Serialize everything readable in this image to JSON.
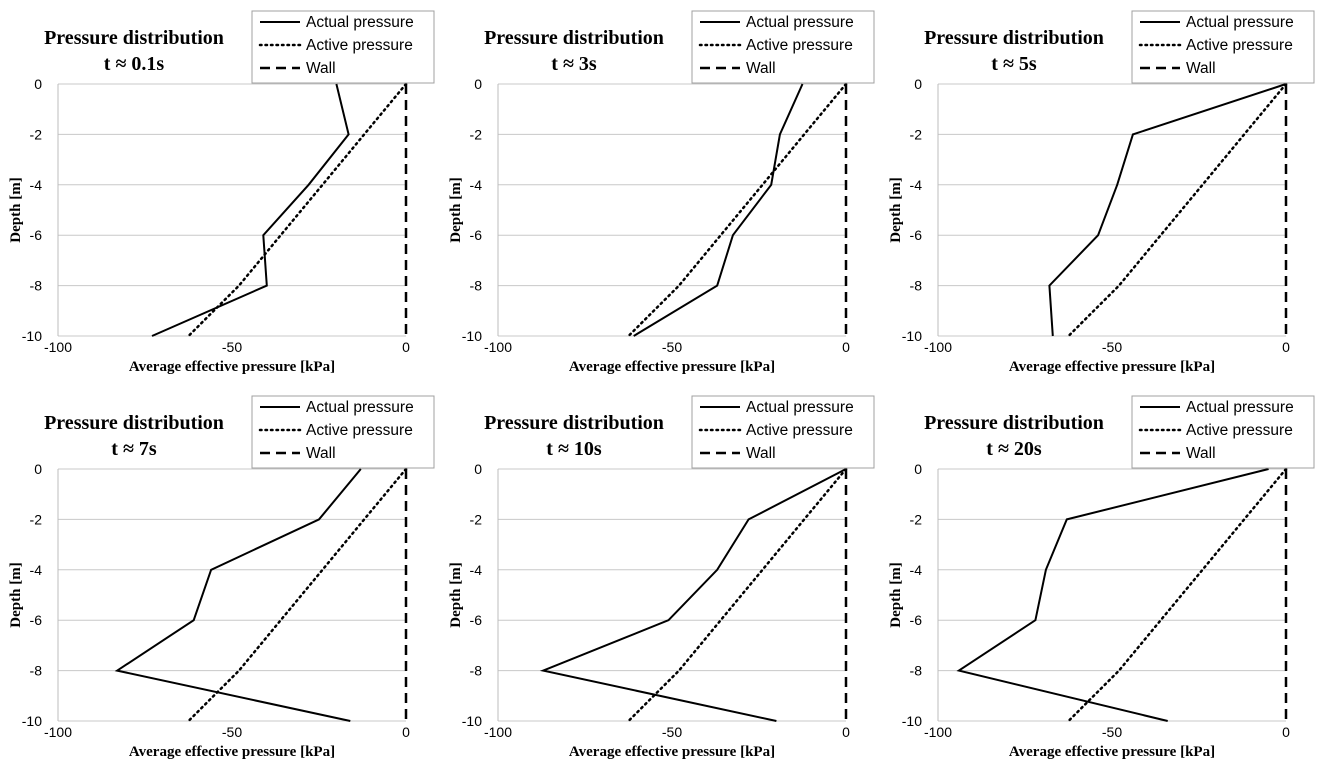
{
  "chart_data": [
    {
      "type": "line",
      "title": "Pressure distribution",
      "subtitle": "t ≈ 0.1s",
      "xlabel": "Average effective pressure [kPa]",
      "ylabel": "Depth [m]",
      "xlim": [
        -100,
        0
      ],
      "ylim": [
        -10,
        0
      ],
      "xticks": [
        -100,
        -50,
        0
      ],
      "yticks": [
        0,
        -2,
        -4,
        -6,
        -8,
        -10
      ],
      "grid": "horizontal",
      "legend_position": "top-right",
      "series": [
        {
          "name": "Actual pressure",
          "style": "solid",
          "points": [
            [
              -20,
              0
            ],
            [
              -16.5,
              -2
            ],
            [
              -28,
              -4
            ],
            [
              -41,
              -6
            ],
            [
              -40,
              -8
            ],
            [
              -73,
              -10
            ]
          ]
        },
        {
          "name": "Active pressure",
          "style": "dotted",
          "points": [
            [
              0,
              0
            ],
            [
              -12,
              -2
            ],
            [
              -24,
              -4
            ],
            [
              -36,
              -6
            ],
            [
              -48,
              -8
            ],
            [
              -62.5,
              -10
            ]
          ]
        },
        {
          "name": "Wall",
          "style": "dashed",
          "points": [
            [
              0,
              0
            ],
            [
              0,
              -10
            ]
          ]
        }
      ]
    },
    {
      "type": "line",
      "title": "Pressure distribution",
      "subtitle": "t ≈ 3s",
      "xlabel": "Average effective pressure [kPa]",
      "ylabel": "Depth [m]",
      "xlim": [
        -100,
        0
      ],
      "ylim": [
        -10,
        0
      ],
      "xticks": [
        -100,
        -50,
        0
      ],
      "yticks": [
        0,
        -2,
        -4,
        -6,
        -8,
        -10
      ],
      "grid": "horizontal",
      "legend_position": "top-right",
      "series": [
        {
          "name": "Actual pressure",
          "style": "solid",
          "points": [
            [
              -12.5,
              0
            ],
            [
              -19,
              -2
            ],
            [
              -21.5,
              -4
            ],
            [
              -32.5,
              -6
            ],
            [
              -37,
              -8
            ],
            [
              -61,
              -10
            ]
          ]
        },
        {
          "name": "Active pressure",
          "style": "dotted",
          "points": [
            [
              0,
              0
            ],
            [
              -12,
              -2
            ],
            [
              -24,
              -4
            ],
            [
              -36,
              -6
            ],
            [
              -48,
              -8
            ],
            [
              -62.5,
              -10
            ]
          ]
        },
        {
          "name": "Wall",
          "style": "dashed",
          "points": [
            [
              0,
              0
            ],
            [
              0,
              -10
            ]
          ]
        }
      ]
    },
    {
      "type": "line",
      "title": "Pressure distribution",
      "subtitle": "t ≈ 5s",
      "xlabel": "Average effective pressure [kPa]",
      "ylabel": "Depth [m]",
      "xlim": [
        -100,
        0
      ],
      "ylim": [
        -10,
        0
      ],
      "xticks": [
        -100,
        -50,
        0
      ],
      "yticks": [
        0,
        -2,
        -4,
        -6,
        -8,
        -10
      ],
      "grid": "horizontal",
      "legend_position": "top-right",
      "series": [
        {
          "name": "Actual pressure",
          "style": "solid",
          "points": [
            [
              0,
              0
            ],
            [
              -44,
              -2
            ],
            [
              -48.5,
              -4
            ],
            [
              -54,
              -6
            ],
            [
              -68,
              -8
            ],
            [
              -67,
              -10
            ]
          ]
        },
        {
          "name": "Active pressure",
          "style": "dotted",
          "points": [
            [
              0,
              0
            ],
            [
              -12,
              -2
            ],
            [
              -24,
              -4
            ],
            [
              -36,
              -6
            ],
            [
              -48,
              -8
            ],
            [
              -62.5,
              -10
            ]
          ]
        },
        {
          "name": "Wall",
          "style": "dashed",
          "points": [
            [
              0,
              0
            ],
            [
              0,
              -10
            ]
          ]
        }
      ]
    },
    {
      "type": "line",
      "title": "Pressure distribution",
      "subtitle": "t ≈ 7s",
      "xlabel": "Average effective pressure [kPa]",
      "ylabel": "Depth [m]",
      "xlim": [
        -100,
        0
      ],
      "ylim": [
        -10,
        0
      ],
      "xticks": [
        -100,
        -50,
        0
      ],
      "yticks": [
        0,
        -2,
        -4,
        -6,
        -8,
        -10
      ],
      "grid": "horizontal",
      "legend_position": "top-right",
      "series": [
        {
          "name": "Actual pressure",
          "style": "solid",
          "points": [
            [
              -13,
              0
            ],
            [
              -25,
              -2
            ],
            [
              -56,
              -4
            ],
            [
              -61,
              -6
            ],
            [
              -83,
              -8
            ],
            [
              -16,
              -10
            ]
          ]
        },
        {
          "name": "Active pressure",
          "style": "dotted",
          "points": [
            [
              0,
              0
            ],
            [
              -12,
              -2
            ],
            [
              -24,
              -4
            ],
            [
              -36,
              -6
            ],
            [
              -48,
              -8
            ],
            [
              -62.5,
              -10
            ]
          ]
        },
        {
          "name": "Wall",
          "style": "dashed",
          "points": [
            [
              0,
              0
            ],
            [
              0,
              -10
            ]
          ]
        }
      ]
    },
    {
      "type": "line",
      "title": "Pressure distribution",
      "subtitle": "t ≈ 10s",
      "xlabel": "Average effective pressure [kPa]",
      "ylabel": "Depth [m]",
      "xlim": [
        -100,
        0
      ],
      "ylim": [
        -10,
        0
      ],
      "xticks": [
        -100,
        -50,
        0
      ],
      "yticks": [
        0,
        -2,
        -4,
        -6,
        -8,
        -10
      ],
      "grid": "horizontal",
      "legend_position": "top-right",
      "series": [
        {
          "name": "Actual pressure",
          "style": "solid",
          "points": [
            [
              0,
              0
            ],
            [
              -28,
              -2
            ],
            [
              -37,
              -4
            ],
            [
              -51,
              -6
            ],
            [
              -87,
              -8
            ],
            [
              -20,
              -10
            ]
          ]
        },
        {
          "name": "Active pressure",
          "style": "dotted",
          "points": [
            [
              0,
              0
            ],
            [
              -12,
              -2
            ],
            [
              -24,
              -4
            ],
            [
              -36,
              -6
            ],
            [
              -48,
              -8
            ],
            [
              -62.5,
              -10
            ]
          ]
        },
        {
          "name": "Wall",
          "style": "dashed",
          "points": [
            [
              0,
              0
            ],
            [
              0,
              -10
            ]
          ]
        }
      ]
    },
    {
      "type": "line",
      "title": "Pressure distribution",
      "subtitle": "t ≈ 20s",
      "xlabel": "Average effective pressure [kPa]",
      "ylabel": "Depth [m]",
      "xlim": [
        -100,
        0
      ],
      "ylim": [
        -10,
        0
      ],
      "xticks": [
        -100,
        -50,
        0
      ],
      "yticks": [
        0,
        -2,
        -4,
        -6,
        -8,
        -10
      ],
      "grid": "horizontal",
      "legend_position": "top-right",
      "series": [
        {
          "name": "Actual pressure",
          "style": "solid",
          "points": [
            [
              -5,
              0
            ],
            [
              -63,
              -2
            ],
            [
              -69,
              -4
            ],
            [
              -72,
              -6
            ],
            [
              -94,
              -8
            ],
            [
              -34,
              -10
            ]
          ]
        },
        {
          "name": "Active pressure",
          "style": "dotted",
          "points": [
            [
              0,
              0
            ],
            [
              -12,
              -2
            ],
            [
              -24,
              -4
            ],
            [
              -36,
              -6
            ],
            [
              -48,
              -8
            ],
            [
              -62.5,
              -10
            ]
          ]
        },
        {
          "name": "Wall",
          "style": "dashed",
          "points": [
            [
              0,
              0
            ],
            [
              0,
              -10
            ]
          ]
        }
      ]
    }
  ]
}
